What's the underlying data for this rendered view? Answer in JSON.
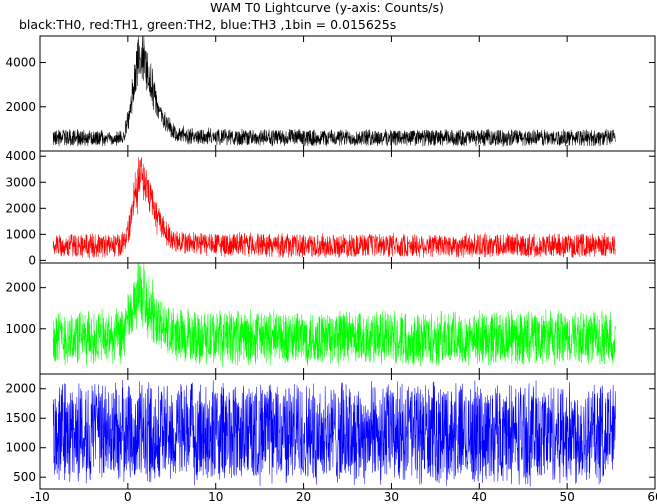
{
  "title": "WAM T0 Lightcurve (y-axis: Counts/s)",
  "subtitle": "black:TH0, red:TH1, green:TH2, blue:TH3 ,1bin = 0.015625s",
  "chart_data": [
    {
      "type": "line",
      "series": [
        {
          "name": "TH0",
          "color": "#000000"
        }
      ],
      "x_range": [
        -8.5,
        55.5
      ],
      "baseline": 600,
      "noise_band": [
        250,
        950
      ],
      "peak": {
        "x": 1.2,
        "value": 5200
      },
      "ylim": [
        0,
        5200
      ],
      "yticks": [
        "2000",
        "4000"
      ],
      "ytick_values": [
        2000,
        4000
      ],
      "grid": false
    },
    {
      "type": "line",
      "series": [
        {
          "name": "TH1",
          "color": "#ff0000"
        }
      ],
      "x_range": [
        -8.5,
        55.5
      ],
      "baseline": 450,
      "noise_band": [
        150,
        1000
      ],
      "peak": {
        "x": 1.2,
        "value": 4000
      },
      "ylim": [
        -100,
        4200
      ],
      "yticks": [
        "0",
        "1000",
        "2000",
        "3000",
        "4000"
      ],
      "ytick_values": [
        0,
        1000,
        2000,
        3000,
        4000
      ],
      "grid": false
    },
    {
      "type": "line",
      "series": [
        {
          "name": "TH2",
          "color": "#00ff00"
        }
      ],
      "x_range": [
        -8.5,
        55.5
      ],
      "baseline": 600,
      "noise_band": [
        150,
        1400
      ],
      "peak": {
        "x": 1.0,
        "value": 2550
      },
      "ylim": [
        -100,
        2600
      ],
      "yticks": [
        "1000",
        "2000"
      ],
      "ytick_values": [
        1000,
        2000
      ],
      "grid": false
    },
    {
      "type": "line",
      "series": [
        {
          "name": "TH3",
          "color": "#0000ff"
        }
      ],
      "x_range": [
        -8.5,
        55.5
      ],
      "baseline": 1100,
      "noise_band": [
        450,
        2050
      ],
      "ylim": [
        300,
        2250
      ],
      "yticks": [
        "500",
        "1000",
        "1500",
        "2000"
      ],
      "ytick_values": [
        500,
        1000,
        1500,
        2000
      ],
      "xticks": [
        "-10",
        "0",
        "10",
        "20",
        "30",
        "40",
        "50",
        "60"
      ],
      "xtick_values": [
        -10,
        0,
        10,
        20,
        30,
        40,
        50,
        60
      ],
      "xlim": [
        -10,
        60
      ],
      "grid": false
    }
  ]
}
